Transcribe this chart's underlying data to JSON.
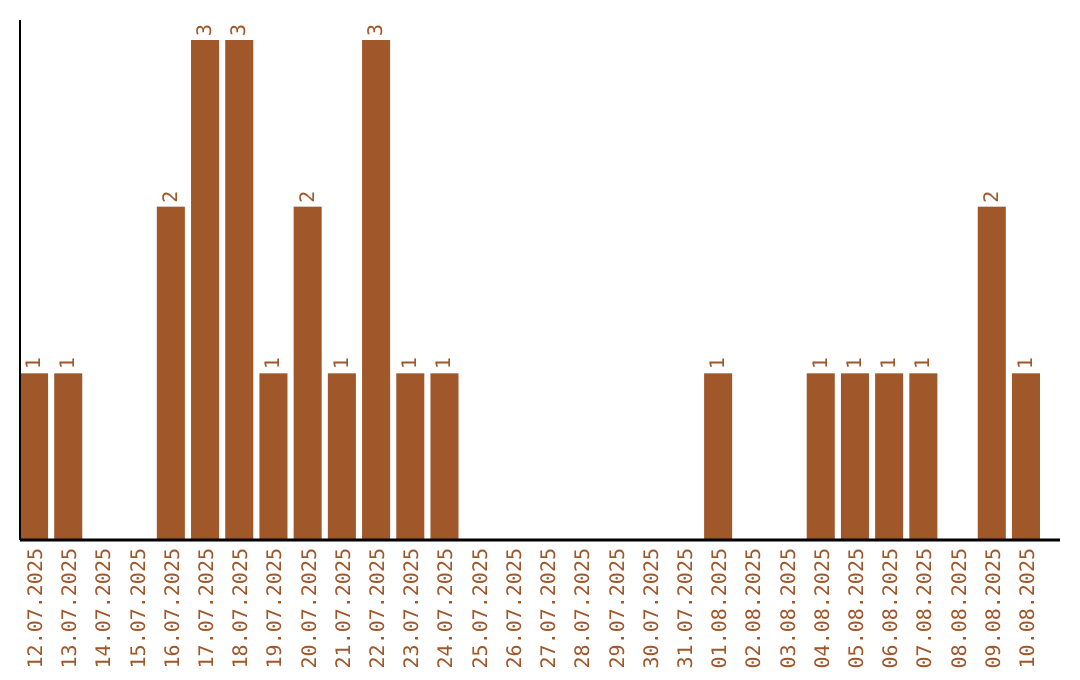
{
  "chart_data": {
    "type": "bar",
    "categories": [
      "12.07.2025",
      "13.07.2025",
      "14.07.2025",
      "15.07.2025",
      "16.07.2025",
      "17.07.2025",
      "18.07.2025",
      "19.07.2025",
      "20.07.2025",
      "21.07.2025",
      "22.07.2025",
      "23.07.2025",
      "24.07.2025",
      "25.07.2025",
      "26.07.2025",
      "27.07.2025",
      "28.07.2025",
      "29.07.2025",
      "30.07.2025",
      "31.07.2025",
      "01.08.2025",
      "02.08.2025",
      "03.08.2025",
      "04.08.2025",
      "05.08.2025",
      "06.08.2025",
      "07.08.2025",
      "08.08.2025",
      "09.08.2025",
      "10.08.2025"
    ],
    "values": [
      1,
      1,
      0,
      0,
      2,
      3,
      3,
      1,
      2,
      1,
      3,
      1,
      1,
      0,
      0,
      0,
      0,
      0,
      0,
      0,
      1,
      0,
      0,
      1,
      1,
      1,
      1,
      0,
      2,
      1
    ],
    "value_labels": [
      "1",
      "1",
      null,
      null,
      "2",
      "3",
      "3",
      "1",
      "2",
      "1",
      "3",
      "1",
      "1",
      null,
      null,
      null,
      null,
      null,
      null,
      null,
      "1",
      null,
      null,
      "1",
      "1",
      "1",
      "1",
      null,
      "2",
      "1"
    ],
    "color": "#a0572a",
    "ylim": [
      0,
      3.12
    ],
    "tick_labels": "x"
  }
}
